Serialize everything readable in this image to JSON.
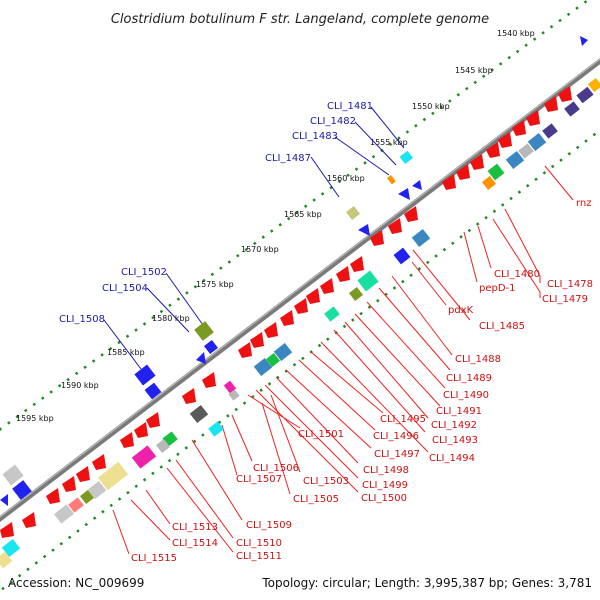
{
  "title": "Clostridium botulinum F str. Langeland, complete genome",
  "footer": {
    "accession": "Accession: NC_009699",
    "topology": "Topology: circular; Length: 3,995,387 bp; Genes: 3,781"
  },
  "ticks": [
    "1540 kbp",
    "1545 kbp",
    "1550 kbp",
    "1555 kbp",
    "1560 kbp",
    "1565 kbp",
    "1570 kbp",
    "1575 kbp",
    "1580 kbp",
    "1585 kbp",
    "1590 kbp",
    "1595 kbp"
  ],
  "labels_blue": [
    "CLI_1481",
    "CLI_1482",
    "CLI_1483",
    "CLI_1487",
    "CLI_1502",
    "CLI_1504",
    "CLI_1508"
  ],
  "labels_red": [
    "rnz",
    "CLI_1478",
    "CLI_1479",
    "CLI_1480",
    "pepD-1",
    "pdxK",
    "CLI_1485",
    "CLI_1488",
    "CLI_1489",
    "CLI_1490",
    "CLI_1491",
    "CLI_1492",
    "CLI_1493",
    "CLI_1494",
    "CLI_1495",
    "CLI_1496",
    "CLI_1497",
    "CLI_1498",
    "CLI_1499",
    "CLI_1500",
    "CLI_1501",
    "CLI_1503",
    "CLI_1505",
    "CLI_1506",
    "CLI_1507",
    "CLI_1509",
    "CLI_1510",
    "CLI_1511",
    "CLI_1513",
    "CLI_1514",
    "CLI_1515"
  ],
  "colors": {
    "backbone": "#7a7a7a",
    "tick_dots": "#1f8a1f",
    "forward_label": "#1a1aa8",
    "reverse_label": "#cc1111"
  }
}
